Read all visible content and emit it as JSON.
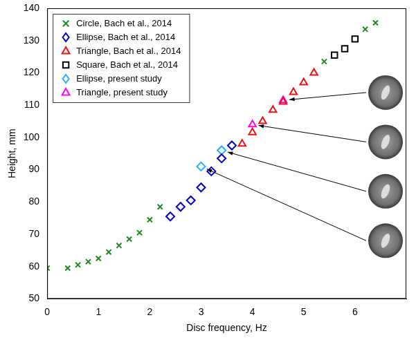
{
  "chart_data": {
    "type": "scatter",
    "x_label": "Disc frequency, Hz",
    "y_label": "Height, mm",
    "xlim": [
      0,
      7
    ],
    "xticks": [
      0,
      1,
      2,
      3,
      4,
      5,
      6
    ],
    "ylim": [
      50,
      140
    ],
    "yticks": [
      50,
      60,
      70,
      80,
      90,
      100,
      110,
      120,
      130,
      140
    ],
    "grid": false,
    "legend": "upper left",
    "series": [
      {
        "name": "Circle, Bach et al., 2014",
        "color": "#1f8a1f",
        "marker": "x",
        "x": [
          0,
          0.4,
          0.6,
          0.8,
          1.0,
          1.2,
          1.4,
          1.6,
          1.8,
          2.0,
          2.2,
          5.4,
          6.2,
          6.4
        ],
        "values": [
          59.5,
          59.5,
          60.5,
          61.5,
          62.5,
          64.5,
          66.5,
          68.5,
          70.5,
          74.5,
          78.5,
          123.5,
          133.5,
          135.5
        ]
      },
      {
        "name": "Ellipse, Bach et al., 2014",
        "color": "#0000cc",
        "marker": "diamond",
        "x": [
          2.4,
          2.6,
          2.8,
          3.0,
          3.2,
          3.4,
          3.6
        ],
        "values": [
          75.5,
          78.5,
          80.5,
          84.5,
          89.5,
          93.5,
          97.5
        ]
      },
      {
        "name": "Triangle, Bach et al., 2014",
        "color": "#ee1111",
        "marker": "triangle",
        "x": [
          3.8,
          4.0,
          4.2,
          4.4,
          4.6,
          4.8,
          5.0,
          5.2
        ],
        "values": [
          98,
          101.5,
          105,
          108.5,
          111,
          114,
          117,
          120
        ]
      },
      {
        "name": "Square, Bach et al., 2014",
        "color": "#000000",
        "marker": "square",
        "x": [
          5.6,
          5.8,
          6.0
        ],
        "values": [
          125.5,
          127.5,
          130.5
        ]
      },
      {
        "name": "Ellipse, present study",
        "color": "#22b4ee",
        "marker": "diamond",
        "x": [
          3.0,
          3.4
        ],
        "values": [
          91,
          96
        ]
      },
      {
        "name": "Triangle, present study",
        "color": "#ff00ff",
        "marker": "triangle",
        "x": [
          4.0,
          4.6
        ],
        "values": [
          104,
          111.5
        ]
      }
    ]
  }
}
